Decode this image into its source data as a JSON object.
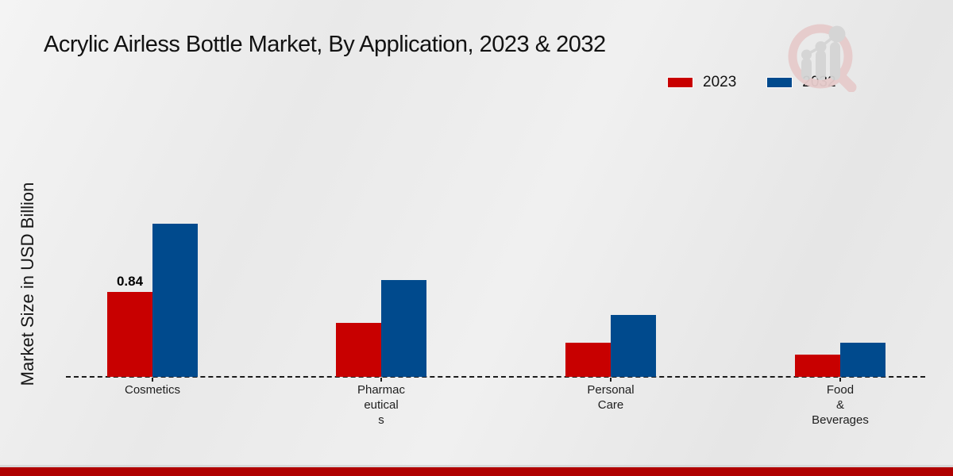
{
  "page": {
    "title": "Acrylic Airless Bottle Market, By Application, 2023 & 2032",
    "ylabel": "Market Size in USD Billion"
  },
  "legend": {
    "items": [
      {
        "label": "2023",
        "color": "#c80000"
      },
      {
        "label": "2032",
        "color": "#004a8d"
      }
    ]
  },
  "colors": {
    "series_2023": "#c80000",
    "series_2032": "#004a8d",
    "footer_band": "#b00000",
    "baseline": "#1c1c1c"
  },
  "logo": {
    "name": "market-research-magnifier-chart-logo"
  },
  "chart_data": {
    "type": "bar",
    "title": "Acrylic Airless Bottle Market, By Application, 2023 & 2032",
    "xlabel": "",
    "ylabel": "Market Size in USD Billion",
    "categories": [
      "Cosmetics",
      "Pharmaceuticals",
      "Personal Care",
      "Food & Beverages"
    ],
    "category_display_lines": [
      [
        "Cosmetics"
      ],
      [
        "Pharmac",
        "eutical",
        "s"
      ],
      [
        "Personal",
        "Care"
      ],
      [
        "Food",
        "&",
        "Beverages"
      ]
    ],
    "series": [
      {
        "name": "2023",
        "color": "#c80000",
        "values": [
          0.84,
          0.53,
          0.34,
          0.22
        ]
      },
      {
        "name": "2032",
        "color": "#004a8d",
        "values": [
          1.51,
          0.96,
          0.61,
          0.34
        ]
      }
    ],
    "data_labels": [
      {
        "series": "2023",
        "category": "Cosmetics",
        "text": "0.84"
      }
    ],
    "ylim": [
      0,
      1.6
    ],
    "grid": false,
    "y_axis_ticks_visible": false,
    "legend_position": "top-right",
    "baseline_style": "dashed"
  }
}
